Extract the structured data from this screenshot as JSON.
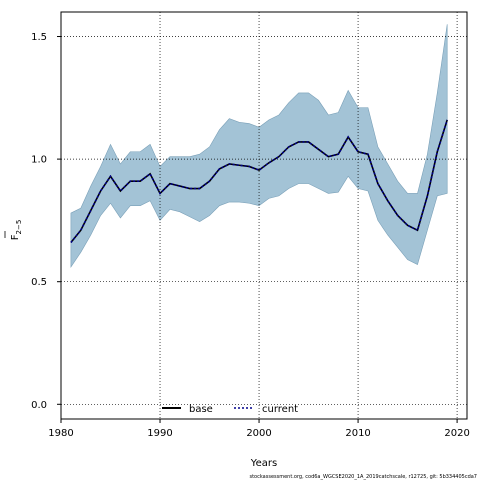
{
  "chart_data": {
    "type": "line",
    "xlabel": "Years",
    "ylabel": "F",
    "ylabel_subscript": "2−5",
    "xlim": [
      1980,
      2021
    ],
    "ylim": [
      -0.06,
      1.6
    ],
    "xticks": [
      1980,
      1990,
      2000,
      2010,
      2020
    ],
    "yticks": [
      0.0,
      0.5,
      1.0,
      1.5
    ],
    "xtick_labels": [
      "1980",
      "1990",
      "2000",
      "2010",
      "2020"
    ],
    "ytick_labels": [
      "0.0",
      "0.5",
      "1.0",
      "1.5"
    ],
    "grid": true,
    "legend_position": "bottom-center",
    "footnote": "stockassessment.org, cod6a_WGCSE2020_1A_2019catchscale, r12725, git: 5b334405cda7",
    "colors": {
      "band": "#a3c3d6",
      "band_edge": "#7aa0b8",
      "base": "#000000",
      "current": "#00008b"
    },
    "x": [
      1981,
      1982,
      1983,
      1984,
      1985,
      1986,
      1987,
      1988,
      1989,
      1990,
      1991,
      1992,
      1993,
      1994,
      1995,
      1996,
      1997,
      1998,
      1999,
      2000,
      2001,
      2002,
      2003,
      2004,
      2005,
      2006,
      2007,
      2008,
      2009,
      2010,
      2011,
      2012,
      2013,
      2014,
      2015,
      2016,
      2017,
      2018,
      2019
    ],
    "series": [
      {
        "name": "base",
        "style": "solid",
        "values": [
          0.66,
          0.71,
          0.79,
          0.87,
          0.93,
          0.87,
          0.91,
          0.91,
          0.94,
          0.86,
          0.9,
          0.89,
          0.88,
          0.88,
          0.91,
          0.96,
          0.98,
          0.975,
          0.97,
          0.955,
          0.985,
          1.01,
          1.05,
          1.07,
          1.07,
          1.04,
          1.01,
          1.02,
          1.09,
          1.03,
          1.02,
          0.9,
          0.83,
          0.77,
          0.73,
          0.71,
          0.85,
          1.03,
          1.16
        ]
      },
      {
        "name": "current",
        "style": "dotted",
        "values": [
          0.66,
          0.71,
          0.79,
          0.87,
          0.93,
          0.87,
          0.91,
          0.91,
          0.94,
          0.86,
          0.9,
          0.89,
          0.88,
          0.88,
          0.91,
          0.96,
          0.98,
          0.975,
          0.97,
          0.955,
          0.985,
          1.01,
          1.05,
          1.07,
          1.07,
          1.04,
          1.01,
          1.02,
          1.09,
          1.03,
          1.02,
          0.9,
          0.83,
          0.77,
          0.73,
          0.71,
          0.85,
          1.03,
          1.16
        ]
      }
    ],
    "band_lower": [
      0.56,
      0.62,
      0.69,
      0.77,
      0.82,
      0.76,
      0.81,
      0.81,
      0.83,
      0.75,
      0.795,
      0.785,
      0.765,
      0.745,
      0.77,
      0.81,
      0.825,
      0.825,
      0.82,
      0.81,
      0.84,
      0.85,
      0.88,
      0.9,
      0.9,
      0.88,
      0.86,
      0.865,
      0.93,
      0.88,
      0.87,
      0.75,
      0.69,
      0.64,
      0.59,
      0.57,
      0.71,
      0.85,
      0.86
    ],
    "band_upper": [
      0.78,
      0.8,
      0.89,
      0.97,
      1.06,
      0.98,
      1.03,
      1.03,
      1.06,
      0.97,
      1.01,
      1.01,
      1.01,
      1.02,
      1.05,
      1.12,
      1.165,
      1.15,
      1.145,
      1.13,
      1.16,
      1.18,
      1.23,
      1.27,
      1.27,
      1.24,
      1.18,
      1.19,
      1.28,
      1.21,
      1.21,
      1.05,
      0.98,
      0.91,
      0.86,
      0.86,
      1.02,
      1.27,
      1.55
    ]
  }
}
